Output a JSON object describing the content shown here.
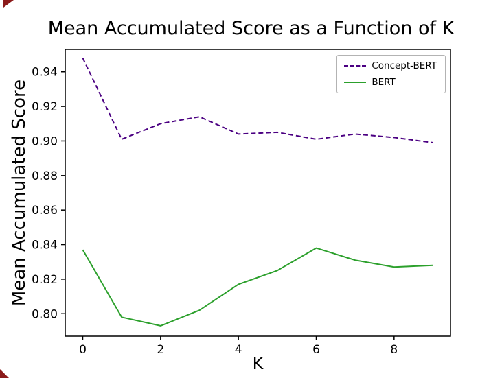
{
  "page": {
    "background": "#ffffff"
  },
  "corner_marks": {
    "color": "#8b1a1a"
  },
  "chart_data": {
    "type": "line",
    "title": "Mean Accumulated Score as a Function of K",
    "xlabel": "K",
    "ylabel": "Mean Accumulated Score",
    "x": [
      0,
      1,
      2,
      3,
      4,
      5,
      6,
      7,
      8,
      9
    ],
    "xlim": [
      -0.45,
      9.45
    ],
    "ylim": [
      0.787,
      0.953
    ],
    "x_ticks": [
      0,
      2,
      4,
      6,
      8
    ],
    "y_ticks": [
      0.8,
      0.82,
      0.84,
      0.86,
      0.88,
      0.9,
      0.92,
      0.94
    ],
    "grid": false,
    "legend_position": "upper right",
    "series": [
      {
        "name": "Concept-BERT",
        "color": "#4b0082",
        "style": "dashed",
        "dash": "7,4",
        "values": [
          0.948,
          0.901,
          0.91,
          0.914,
          0.904,
          0.905,
          0.901,
          0.904,
          0.902,
          0.899
        ]
      },
      {
        "name": "BERT",
        "color": "#2ca02c",
        "style": "solid",
        "dash": "",
        "values": [
          0.837,
          0.798,
          0.793,
          0.802,
          0.817,
          0.825,
          0.838,
          0.831,
          0.827,
          0.828
        ]
      }
    ]
  }
}
